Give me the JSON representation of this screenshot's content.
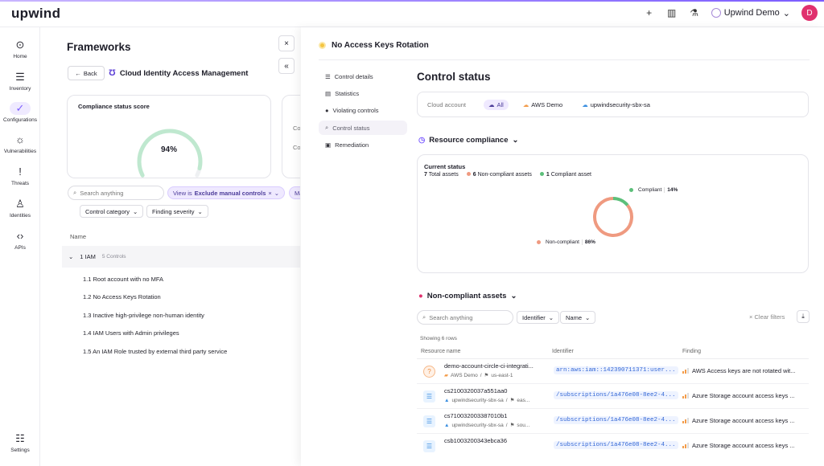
{
  "app": {
    "logo": "upwind"
  },
  "topbar": {
    "icons": [
      "plus-icon",
      "book-icon",
      "rocket-icon"
    ],
    "user_name": "Upwind Demo",
    "avatar_initial": "D"
  },
  "sidebar": {
    "items": [
      {
        "label": "Home",
        "icon": "home-icon"
      },
      {
        "label": "Inventory",
        "icon": "list-icon"
      },
      {
        "label": "Configurations",
        "icon": "check-icon"
      },
      {
        "label": "Vulnerabilities",
        "icon": "bug-icon"
      },
      {
        "label": "Threats",
        "icon": "alert-icon"
      },
      {
        "label": "Identities",
        "icon": "user-icon"
      },
      {
        "label": "APIs",
        "icon": "code-icon"
      }
    ],
    "settings_label": "Settings"
  },
  "frameworks": {
    "title": "Frameworks",
    "back_label": "Back",
    "framework_name": "Cloud Identity Access Management",
    "score_title": "Compliance status score",
    "score_value": "94%",
    "score_fraction": 0.94,
    "search_placeholder": "Search anything",
    "chip_prefix": "View is",
    "chip_value": "Exclude manual controls",
    "chip_more": "Ma",
    "filter1": "Control category",
    "filter2": "Finding severity",
    "col_name": "Name",
    "group_label": "1 IAM",
    "group_count": "5 Controls",
    "controls": [
      "1.1 Root account with no MFA",
      "1.2 No Access Keys Rotation",
      "1.3 Inactive high-privilege non-human identity",
      "1.4 IAM Users with Admin privileges",
      "1.5 An IAM Role trusted by external third party service"
    ],
    "second_card_labels": [
      "Co",
      "Co"
    ]
  },
  "panel": {
    "title": "No Access Keys Rotation",
    "subnav": [
      "Control details",
      "Statistics",
      "Violating controls",
      "Control status",
      "Remediation"
    ],
    "control_status_title": "Control status",
    "cloud_account_label": "Cloud account",
    "cloud_options": [
      "All",
      "AWS Demo",
      "upwindsecurity-sbx-sa"
    ],
    "resource_compliance_title": "Resource compliance",
    "current_status_label": "Current status",
    "total_assets": "7",
    "total_assets_label": "Total assets",
    "non_compliant_count": "6",
    "non_compliant_label": "Non-compliant assets",
    "compliant_count": "1",
    "compliant_label": "Compliant asset",
    "donut": {
      "compliant_label": "Compliant",
      "compliant_pct": "14%",
      "compliant_value": 14,
      "noncompliant_label": "Non-compliant",
      "noncompliant_pct": "86%",
      "noncompliant_value": 86,
      "compliant_color": "#5cbf7a",
      "noncompliant_color": "#ef9a80"
    },
    "noncompliant_title": "Non-compliant assets",
    "search_placeholder": "Search anything",
    "filter_identifier": "Identifier",
    "filter_name": "Name",
    "clear_filters": "Clear filters",
    "showing": "Showing 6 rows",
    "headers": [
      "Resource name",
      "Identifier",
      "Finding"
    ],
    "rows": [
      {
        "name": "demo-account-circle-ci-integrati...",
        "account": "AWS Demo",
        "region": "us-east-1",
        "identifier": "arn:aws:iam::142390711371:user...",
        "finding": "AWS Access keys are not rotated wit...",
        "icon": "aws-user-icon"
      },
      {
        "name": "cs2100320037a551aa0",
        "account": "upwindsecurity-sbx-sa",
        "region": "eas...",
        "identifier": "/subscriptions/1a476e08-8ee2-4...",
        "finding": "Azure Storage account access keys ...",
        "icon": "storage-icon"
      },
      {
        "name": "cs710032003387010b1",
        "account": "upwindsecurity-sbx-sa",
        "region": "sou...",
        "identifier": "/subscriptions/1a476e08-8ee2-4...",
        "finding": "Azure Storage account access keys ...",
        "icon": "storage-icon"
      },
      {
        "name": "csb1003200343ebca36",
        "account": "",
        "region": "",
        "identifier": "/subscriptions/1a476e08-8ee2-4...",
        "finding": "Azure Storage account access keys ...",
        "icon": "storage-icon"
      }
    ]
  }
}
